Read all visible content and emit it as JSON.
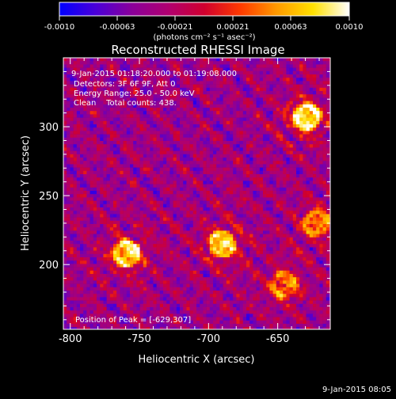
{
  "colorbar": {
    "ticks": [
      "-0.0010",
      "-0.00063",
      "-0.00021",
      "0.00021",
      "0.00063",
      "0.0010"
    ],
    "unit_label": "(photons cm⁻² s⁻¹ asec⁻²)",
    "min": -0.001,
    "max": 0.001,
    "gradient": [
      "#0000ff",
      "#4a00d8",
      "#8a009a",
      "#b00070",
      "#d0002e",
      "#ff3a00",
      "#ff9a00",
      "#ffe000",
      "#ffffff"
    ]
  },
  "chart_data": {
    "type": "heatmap",
    "title": "Reconstructed RHESSI Image",
    "xlabel": "Heliocentric X (arcsec)",
    "ylabel": "Heliocentric Y (arcsec)",
    "xlim": [
      -805,
      -612
    ],
    "ylim": [
      153,
      350
    ],
    "x_ticks": [
      -800,
      -750,
      -700,
      -650
    ],
    "x_tick_labels": [
      "-800",
      "-750",
      "-700",
      "-650"
    ],
    "y_ticks": [
      200,
      250,
      300
    ],
    "y_tick_labels": [
      "200",
      "250",
      "300"
    ],
    "annotations": [
      "9-Jan-2015 01:18:20.000 to 01:19:08.000",
      "Detectors: 3F 6F 9F, Att 0",
      "Energy Range: 25.0 - 50.0 keV",
      "Clean    Total counts: 438."
    ],
    "peak_label": "Position of Peak = [-629,307]",
    "bright_sources": [
      {
        "x": -629,
        "y": 307,
        "value": 0.001
      },
      {
        "x": -759,
        "y": 208,
        "value": 0.0009
      },
      {
        "x": -690,
        "y": 215,
        "value": 0.00085
      },
      {
        "x": -645,
        "y": 185,
        "value": 0.0006
      },
      {
        "x": -622,
        "y": 230,
        "value": 0.00065
      }
    ]
  },
  "footer": {
    "timestamp": "9-Jan-2015 08:05"
  }
}
